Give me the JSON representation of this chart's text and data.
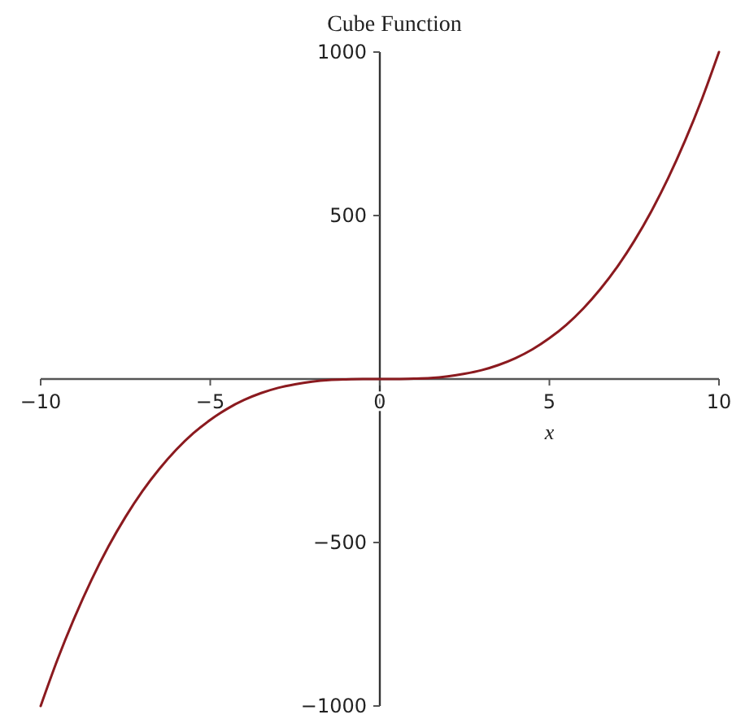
{
  "chart_data": {
    "type": "line",
    "title": "Cube Function",
    "xlabel": "x",
    "x": [
      -10,
      -9.5,
      -9,
      -8.5,
      -8,
      -7.5,
      -7,
      -6.5,
      -6,
      -5.5,
      -5,
      -4.5,
      -4,
      -3.5,
      -3,
      -2.5,
      -2,
      -1.5,
      -1,
      -0.5,
      0,
      0.5,
      1,
      1.5,
      2,
      2.5,
      3,
      3.5,
      4,
      4.5,
      5,
      5.5,
      6,
      6.5,
      7,
      7.5,
      8,
      8.5,
      9,
      9.5,
      10
    ],
    "series": [
      {
        "color": "#8b1a1f",
        "values": [
          -1000,
          -857,
          -729,
          -614,
          -512,
          -422,
          -343,
          -275,
          -216,
          -166,
          -125,
          -91,
          -64,
          -43,
          -27,
          -16,
          -8,
          -3,
          -1,
          0,
          0,
          0,
          1,
          3,
          8,
          16,
          27,
          43,
          64,
          91,
          125,
          166,
          216,
          275,
          343,
          422,
          512,
          614,
          729,
          857,
          1000
        ]
      }
    ],
    "xlim": [
      -10,
      10
    ],
    "ylim": [
      -1000,
      1000
    ],
    "xticks": [
      -10,
      -5,
      0,
      5,
      10
    ],
    "yticks": [
      -1000,
      -500,
      500,
      1000
    ],
    "grid": false,
    "marker": "none",
    "line_style": "solid"
  }
}
